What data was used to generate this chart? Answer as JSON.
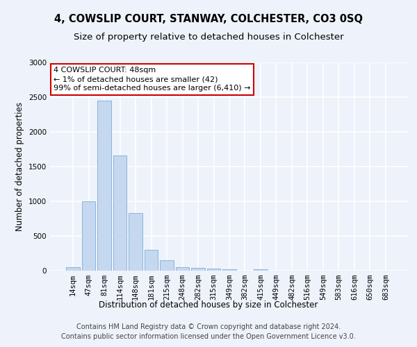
{
  "title": "4, COWSLIP COURT, STANWAY, COLCHESTER, CO3 0SQ",
  "subtitle": "Size of property relative to detached houses in Colchester",
  "xlabel": "Distribution of detached houses by size in Colchester",
  "ylabel": "Number of detached properties",
  "categories": [
    "14sqm",
    "47sqm",
    "81sqm",
    "114sqm",
    "148sqm",
    "181sqm",
    "215sqm",
    "248sqm",
    "282sqm",
    "315sqm",
    "349sqm",
    "382sqm",
    "415sqm",
    "449sqm",
    "482sqm",
    "516sqm",
    "549sqm",
    "583sqm",
    "616sqm",
    "650sqm",
    "683sqm"
  ],
  "values": [
    50,
    1000,
    2450,
    1660,
    830,
    300,
    150,
    50,
    40,
    30,
    20,
    0,
    25,
    0,
    0,
    0,
    0,
    0,
    0,
    0,
    0
  ],
  "bar_color": "#c5d8f0",
  "bar_edge_color": "#7aafd4",
  "annotation_text": "4 COWSLIP COURT: 48sqm\n← 1% of detached houses are smaller (42)\n99% of semi-detached houses are larger (6,410) →",
  "annotation_box_color": "#ffffff",
  "annotation_box_edge_color": "#cc0000",
  "ylim": [
    0,
    3000
  ],
  "yticks": [
    0,
    500,
    1000,
    1500,
    2000,
    2500,
    3000
  ],
  "footer_line1": "Contains HM Land Registry data © Crown copyright and database right 2024.",
  "footer_line2": "Contains public sector information licensed under the Open Government Licence v3.0.",
  "background_color": "#eef2fa",
  "grid_color": "#ffffff",
  "title_fontsize": 10.5,
  "subtitle_fontsize": 9.5,
  "axis_label_fontsize": 8.5,
  "tick_fontsize": 7.5,
  "annotation_fontsize": 8,
  "footer_fontsize": 7
}
